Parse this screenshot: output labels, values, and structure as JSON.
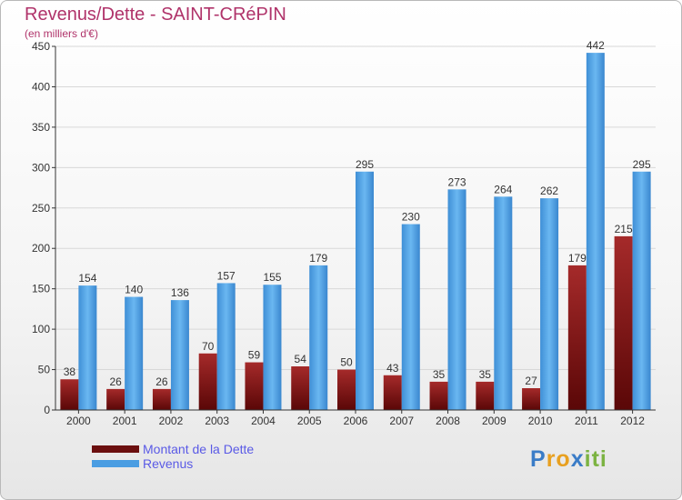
{
  "title": "Revenus/Dette - SAINT-CRéPIN",
  "subtitle": "(en milliers d'€)",
  "colors": {
    "dette": "#7c1a1a",
    "revenus": "#4a9de2",
    "grid": "#d8d8d8",
    "axis": "#333333",
    "title": "#b0336a",
    "legend_text": "#5a5ae6"
  },
  "legend": [
    {
      "label": "Montant de la Dette",
      "color": "#6b0f0f"
    },
    {
      "label": "Revenus",
      "color": "#4a9de2"
    }
  ],
  "logo": {
    "letters": [
      "P",
      "r",
      "o",
      "x",
      "i",
      "t",
      "i"
    ],
    "colors": [
      "#3a7cc7",
      "#e8a020",
      "#e8a020",
      "#3a7cc7",
      "#7cb342",
      "#7cb342",
      "#7cb342"
    ]
  },
  "chart_data": {
    "type": "bar",
    "title": "Revenus/Dette - SAINT-CRéPIN",
    "ylabel": "(en milliers d'€)",
    "xlabel": "",
    "categories": [
      "2000",
      "2001",
      "2002",
      "2003",
      "2004",
      "2005",
      "2006",
      "2007",
      "2008",
      "2009",
      "2010",
      "2011",
      "2012"
    ],
    "series": [
      {
        "name": "Montant de la Dette",
        "values": [
          38,
          26,
          26,
          70,
          59,
          54,
          50,
          43,
          35,
          35,
          27,
          179,
          215
        ]
      },
      {
        "name": "Revenus",
        "values": [
          154,
          140,
          136,
          157,
          155,
          179,
          295,
          230,
          273,
          264,
          262,
          442,
          295
        ]
      }
    ],
    "ylim": [
      0,
      450
    ],
    "yticks": [
      0,
      50,
      100,
      150,
      200,
      250,
      300,
      350,
      400,
      450
    ],
    "grid": true,
    "legend_position": "bottom-left"
  }
}
